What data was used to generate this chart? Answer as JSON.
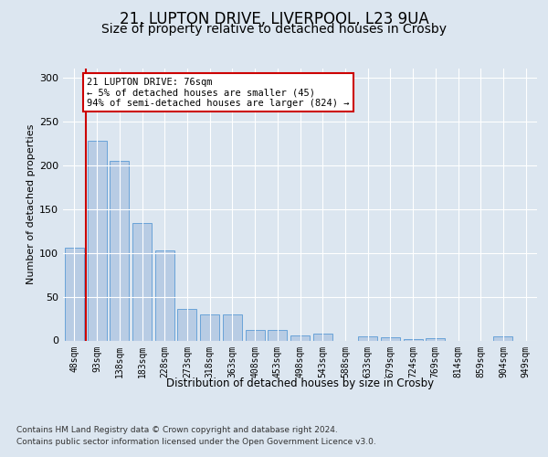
{
  "title_line1": "21, LUPTON DRIVE, LIVERPOOL, L23 9UA",
  "title_line2": "Size of property relative to detached houses in Crosby",
  "xlabel": "Distribution of detached houses by size in Crosby",
  "ylabel": "Number of detached properties",
  "categories": [
    "48sqm",
    "93sqm",
    "138sqm",
    "183sqm",
    "228sqm",
    "273sqm",
    "318sqm",
    "363sqm",
    "408sqm",
    "453sqm",
    "498sqm",
    "543sqm",
    "588sqm",
    "633sqm",
    "679sqm",
    "724sqm",
    "769sqm",
    "814sqm",
    "859sqm",
    "904sqm",
    "949sqm"
  ],
  "values": [
    106,
    228,
    205,
    134,
    103,
    36,
    30,
    30,
    12,
    12,
    6,
    8,
    0,
    5,
    4,
    2,
    3,
    0,
    0,
    5,
    0
  ],
  "bar_color": "#b8cce4",
  "bar_edge_color": "#5b9bd5",
  "highlight_line_color": "#cc0000",
  "annotation_text": "21 LUPTON DRIVE: 76sqm\n← 5% of detached houses are smaller (45)\n94% of semi-detached houses are larger (824) →",
  "annotation_box_color": "#ffffff",
  "annotation_box_edge_color": "#cc0000",
  "ylim": [
    0,
    310
  ],
  "yticks": [
    0,
    50,
    100,
    150,
    200,
    250,
    300
  ],
  "background_color": "#dce6f0",
  "plot_bg_color": "#dce6f0",
  "grid_color": "#ffffff",
  "footer_line1": "Contains HM Land Registry data © Crown copyright and database right 2024.",
  "footer_line2": "Contains public sector information licensed under the Open Government Licence v3.0.",
  "title_fontsize": 12,
  "subtitle_fontsize": 10,
  "label_fontsize": 8,
  "tick_fontsize": 7,
  "footer_fontsize": 6.5
}
